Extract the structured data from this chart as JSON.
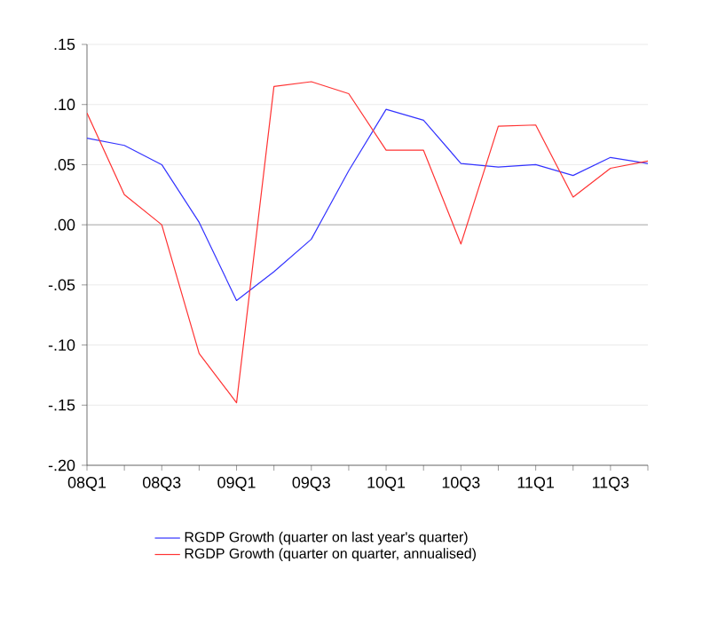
{
  "chart_data": {
    "type": "line",
    "categories": [
      "08Q1",
      null,
      "08Q3",
      null,
      "09Q1",
      null,
      "09Q3",
      null,
      "10Q1",
      null,
      "10Q3",
      null,
      "11Q1",
      null,
      "11Q3",
      null
    ],
    "series": [
      {
        "name": "RGDP Growth (quarter on last year's quarter)",
        "color": "#3333ff",
        "values": [
          0.072,
          0.066,
          0.05,
          0.002,
          -0.063,
          -0.039,
          -0.012,
          0.045,
          0.096,
          0.087,
          0.051,
          0.048,
          0.05,
          0.041,
          0.056,
          0.051
        ]
      },
      {
        "name": "RGDP Growth (quarter on quarter, annualised)",
        "color": "#ff3333",
        "values": [
          0.093,
          0.025,
          0.0,
          -0.107,
          -0.148,
          0.115,
          0.119,
          0.109,
          0.062,
          0.062,
          -0.016,
          0.082,
          0.083,
          0.023,
          0.047,
          0.053
        ]
      }
    ],
    "ylim": [
      -0.2,
      0.15
    ],
    "yticks": [
      {
        "value": -0.2,
        "label": "-.20"
      },
      {
        "value": -0.15,
        "label": "-.15"
      },
      {
        "value": -0.1,
        "label": "-.10"
      },
      {
        "value": -0.05,
        "label": "-.05"
      },
      {
        "value": 0.0,
        "label": ".00"
      },
      {
        "value": 0.05,
        "label": ".05"
      },
      {
        "value": 0.1,
        "label": ".10"
      },
      {
        "value": 0.15,
        "label": ".15"
      }
    ],
    "ref_lines": [
      {
        "axis": "y",
        "value": 0.0,
        "color": "#999999"
      }
    ],
    "grid": "y",
    "legend": "bottom",
    "marker": "none",
    "line_style": "solid"
  }
}
